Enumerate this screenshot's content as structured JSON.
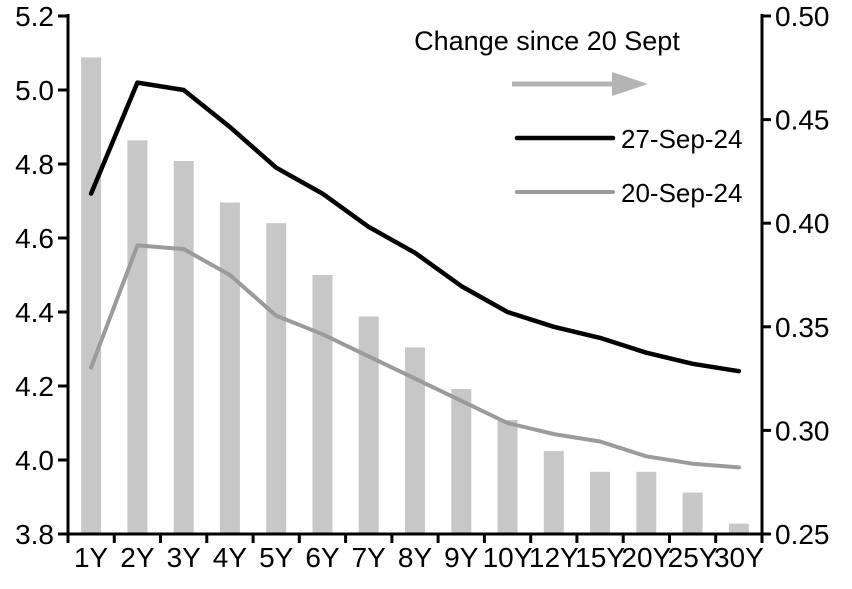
{
  "legend": {
    "title": "Change since 20 Sept",
    "arrow": {
      "name": "right-arrow",
      "color": "#b4b4b4"
    },
    "items": [
      {
        "label": "27-Sep-24",
        "color": "#000000",
        "style": "line"
      },
      {
        "label": "20-Sep-24",
        "color": "#9b9b9b",
        "style": "line"
      }
    ]
  },
  "chart_data": {
    "type": "bar+line",
    "title": "Change since 20 Sept",
    "xlabel": "",
    "ylabel_left": "",
    "ylabel_right": "",
    "grid": false,
    "legend_position": "inside-top-right",
    "categories": [
      "1Y",
      "2Y",
      "3Y",
      "4Y",
      "5Y",
      "6Y",
      "7Y",
      "8Y",
      "9Y",
      "10Y",
      "12Y",
      "15Y",
      "20Y",
      "25Y",
      "30Y"
    ],
    "series": [
      {
        "name": "Change since 20 Sept",
        "type": "bar",
        "axis": "right",
        "color": "#c7c7c7",
        "values": [
          0.48,
          0.44,
          0.43,
          0.41,
          0.4,
          0.375,
          0.355,
          0.34,
          0.32,
          0.305,
          0.29,
          0.28,
          0.28,
          0.27,
          0.255
        ]
      },
      {
        "name": "27-Sep-24",
        "type": "line",
        "axis": "left",
        "color": "#000000",
        "values": [
          4.72,
          5.02,
          5.0,
          4.9,
          4.79,
          4.72,
          4.63,
          4.56,
          4.47,
          4.4,
          4.36,
          4.33,
          4.29,
          4.26,
          4.24
        ]
      },
      {
        "name": "20-Sep-24",
        "type": "line",
        "axis": "left",
        "color": "#9b9b9b",
        "values": [
          4.25,
          4.58,
          4.57,
          4.5,
          4.39,
          4.34,
          4.28,
          4.22,
          4.16,
          4.1,
          4.07,
          4.05,
          4.01,
          3.99,
          3.98
        ]
      }
    ],
    "left_axis": {
      "min": 3.8,
      "max": 5.2,
      "step": 0.2,
      "ticks": [
        {
          "label": "5.2",
          "value": 5.2
        },
        {
          "label": "5.0",
          "value": 5.0
        },
        {
          "label": "4.8",
          "value": 4.8
        },
        {
          "label": "4.6",
          "value": 4.6
        },
        {
          "label": "4.4",
          "value": 4.4
        },
        {
          "label": "4.2",
          "value": 4.2
        },
        {
          "label": "4.0",
          "value": 4.0
        },
        {
          "label": "3.8",
          "value": 3.8
        }
      ]
    },
    "right_axis": {
      "min": 0.25,
      "max": 0.5,
      "step": 0.05,
      "ticks": [
        {
          "label": "0.50",
          "value": 0.5
        },
        {
          "label": "0.45",
          "value": 0.45
        },
        {
          "label": "0.40",
          "value": 0.4
        },
        {
          "label": "0.35",
          "value": 0.35
        },
        {
          "label": "0.30",
          "value": 0.3
        },
        {
          "label": "0.25",
          "value": 0.25
        }
      ]
    }
  }
}
